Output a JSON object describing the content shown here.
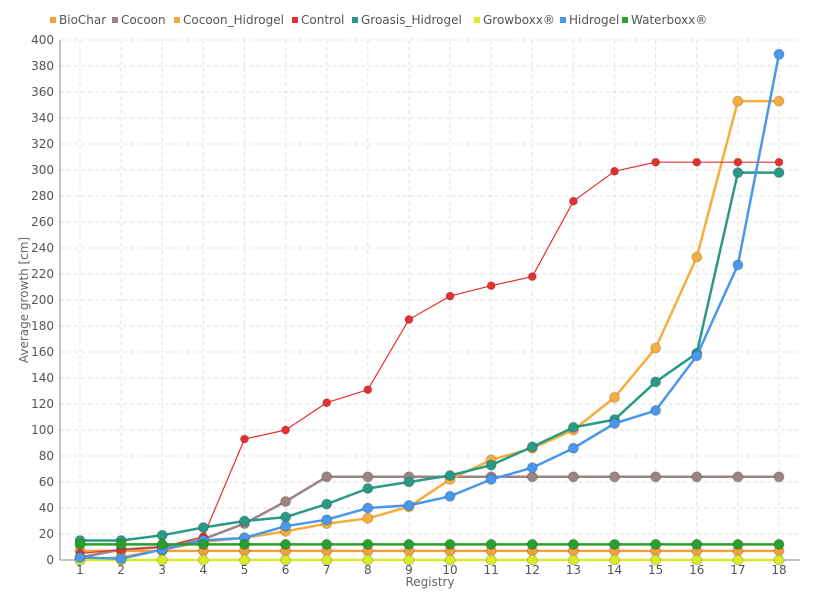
{
  "chart_data": {
    "type": "line",
    "title": "",
    "xlabel": "Registry",
    "ylabel": "Average growth [cm]",
    "categories": [
      "1",
      "2",
      "3",
      "4",
      "5",
      "6",
      "7",
      "8",
      "9",
      "10",
      "11",
      "12",
      "13",
      "14",
      "15",
      "16",
      "17",
      "18"
    ],
    "ylim": [
      0,
      400
    ],
    "yticks": [
      0,
      20,
      40,
      60,
      80,
      100,
      120,
      140,
      160,
      180,
      200,
      220,
      240,
      260,
      280,
      300,
      320,
      340,
      360,
      380,
      400
    ],
    "grid": true,
    "legend_position": "top",
    "series": [
      {
        "name": "BioChar",
        "color": "#f5a040",
        "values": [
          7,
          7,
          7,
          7,
          7,
          7,
          7,
          7,
          7,
          7,
          7,
          7,
          7,
          7,
          7,
          7,
          7,
          7
        ]
      },
      {
        "name": "Cocoon",
        "color": "#9c8484",
        "values": [
          2,
          8,
          10,
          16,
          28,
          45,
          64,
          64,
          64,
          64,
          64,
          64,
          64,
          64,
          64,
          64,
          64,
          64
        ]
      },
      {
        "name": "Cocoon_Hidrogel",
        "color": "#f5ae3c",
        "values": [
          0,
          2,
          8,
          14,
          17,
          22,
          28,
          32,
          41,
          62,
          77,
          86,
          100,
          125,
          163,
          233,
          353,
          353
        ]
      },
      {
        "name": "Control",
        "color": "#e53030",
        "values": [
          5,
          8,
          10,
          18,
          93,
          100,
          121,
          131,
          185,
          203,
          211,
          218,
          276,
          299,
          306,
          306,
          306,
          306
        ]
      },
      {
        "name": "Groasis_Hidrogel",
        "color": "#2a9a86",
        "values": [
          15,
          15,
          19,
          25,
          30,
          33,
          43,
          55,
          60,
          65,
          73,
          87,
          102,
          108,
          137,
          159,
          298,
          298
        ]
      },
      {
        "name": "Growboxx®",
        "color": "#d8ec2a",
        "values": [
          0,
          0,
          0,
          0,
          0,
          0,
          0,
          0,
          0,
          0,
          0,
          0,
          0,
          0,
          0,
          0,
          0,
          0
        ]
      },
      {
        "name": "Hidrogel",
        "color": "#4a98ec",
        "values": [
          2,
          1,
          8,
          15,
          17,
          26,
          31,
          40,
          42,
          49,
          62,
          71,
          86,
          105,
          115,
          157,
          227,
          389
        ]
      },
      {
        "name": "Waterboxx®",
        "color": "#2aa02a",
        "values": [
          12,
          12,
          12,
          12,
          12,
          12,
          12,
          12,
          12,
          12,
          12,
          12,
          12,
          12,
          12,
          12,
          12,
          12
        ]
      }
    ]
  }
}
